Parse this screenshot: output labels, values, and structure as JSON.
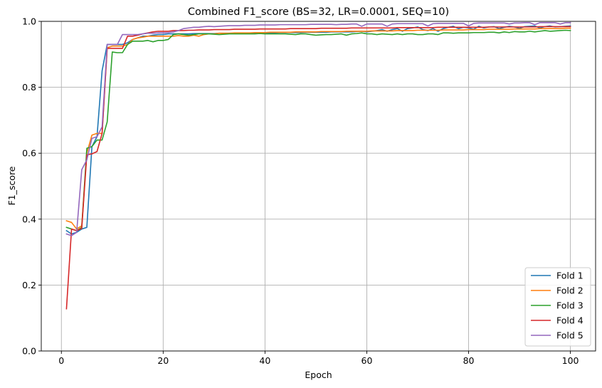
{
  "chart_data": {
    "type": "line",
    "title": "Combined F1_score (BS=32, LR=0.0001, SEQ=10)",
    "xlabel": "Epoch",
    "ylabel": "F1_score",
    "xlim": [
      -3.95,
      104.95
    ],
    "ylim": [
      0.0,
      1.0
    ],
    "xticks": [
      0,
      20,
      40,
      60,
      80,
      100
    ],
    "yticks": [
      0.0,
      0.2,
      0.4,
      0.6,
      0.8,
      1.0
    ],
    "xtick_labels": [
      "0",
      "20",
      "40",
      "60",
      "80",
      "100"
    ],
    "ytick_labels": [
      "0.0",
      "0.2",
      "0.4",
      "0.6",
      "0.8",
      "1.0"
    ],
    "grid": true,
    "legend_position": "lower-right",
    "series": [
      {
        "name": "Fold 1",
        "color": "#1f77b4",
        "values": [
          0.365,
          0.355,
          0.36,
          0.37,
          0.375,
          0.62,
          0.65,
          0.85,
          0.93,
          0.93,
          0.93,
          0.93,
          0.935,
          0.945,
          0.95,
          0.955,
          0.955,
          0.958,
          0.96,
          0.96,
          0.962,
          0.962,
          0.962,
          0.962,
          0.962,
          0.963,
          0.963,
          0.963,
          0.963,
          0.963,
          0.964,
          0.964,
          0.964,
          0.964,
          0.964,
          0.964,
          0.964,
          0.965,
          0.965,
          0.965,
          0.965,
          0.965,
          0.966,
          0.966,
          0.966,
          0.966,
          0.966,
          0.967,
          0.967,
          0.967,
          0.967,
          0.967,
          0.968,
          0.968,
          0.968,
          0.968,
          0.968,
          0.969,
          0.97,
          0.968,
          0.97,
          0.972,
          0.975,
          0.97,
          0.975,
          0.978,
          0.97,
          0.978,
          0.98,
          0.983,
          0.975,
          0.972,
          0.978,
          0.97,
          0.978,
          0.982,
          0.985,
          0.978,
          0.982,
          0.98,
          0.976,
          0.985,
          0.98,
          0.983,
          0.984,
          0.978,
          0.982,
          0.985,
          0.983,
          0.979,
          0.984,
          0.985,
          0.986,
          0.98,
          0.984,
          0.986,
          0.983,
          0.984,
          0.985,
          0.986
        ]
      },
      {
        "name": "Fold 2",
        "color": "#ff7f0e",
        "values": [
          0.395,
          0.39,
          0.37,
          0.38,
          0.6,
          0.655,
          0.66,
          0.66,
          0.92,
          0.925,
          0.925,
          0.925,
          0.93,
          0.945,
          0.95,
          0.952,
          0.955,
          0.955,
          0.955,
          0.955,
          0.955,
          0.955,
          0.957,
          0.955,
          0.955,
          0.958,
          0.955,
          0.96,
          0.962,
          0.962,
          0.964,
          0.964,
          0.964,
          0.965,
          0.965,
          0.965,
          0.965,
          0.966,
          0.966,
          0.966,
          0.967,
          0.967,
          0.967,
          0.967,
          0.967,
          0.968,
          0.968,
          0.968,
          0.968,
          0.968,
          0.969,
          0.969,
          0.969,
          0.969,
          0.969,
          0.97,
          0.97,
          0.97,
          0.97,
          0.97,
          0.971,
          0.971,
          0.971,
          0.971,
          0.971,
          0.972,
          0.972,
          0.972,
          0.972,
          0.973,
          0.973,
          0.973,
          0.973,
          0.973,
          0.974,
          0.974,
          0.974,
          0.974,
          0.974,
          0.975,
          0.975,
          0.975,
          0.975,
          0.976,
          0.976,
          0.976,
          0.976,
          0.976,
          0.977,
          0.977,
          0.977,
          0.977,
          0.977,
          0.978,
          0.978,
          0.978,
          0.978,
          0.978,
          0.979,
          0.979
        ]
      },
      {
        "name": "Fold 3",
        "color": "#2ca02c",
        "values": [
          0.375,
          0.37,
          0.365,
          0.375,
          0.615,
          0.62,
          0.64,
          0.64,
          0.695,
          0.907,
          0.905,
          0.905,
          0.93,
          0.94,
          0.94,
          0.94,
          0.942,
          0.938,
          0.942,
          0.942,
          0.945,
          0.96,
          0.962,
          0.96,
          0.958,
          0.96,
          0.962,
          0.962,
          0.962,
          0.961,
          0.96,
          0.961,
          0.962,
          0.962,
          0.962,
          0.962,
          0.962,
          0.962,
          0.963,
          0.962,
          0.962,
          0.962,
          0.962,
          0.962,
          0.961,
          0.96,
          0.962,
          0.962,
          0.96,
          0.958,
          0.959,
          0.96,
          0.96,
          0.961,
          0.962,
          0.958,
          0.962,
          0.963,
          0.965,
          0.962,
          0.962,
          0.96,
          0.962,
          0.961,
          0.96,
          0.962,
          0.96,
          0.962,
          0.962,
          0.96,
          0.96,
          0.962,
          0.962,
          0.96,
          0.965,
          0.965,
          0.964,
          0.965,
          0.965,
          0.965,
          0.966,
          0.966,
          0.966,
          0.967,
          0.967,
          0.965,
          0.968,
          0.966,
          0.969,
          0.968,
          0.968,
          0.97,
          0.968,
          0.97,
          0.972,
          0.97,
          0.971,
          0.972,
          0.973,
          0.972
        ]
      },
      {
        "name": "Fold 4",
        "color": "#d62728",
        "values": [
          0.128,
          0.37,
          0.365,
          0.372,
          0.595,
          0.598,
          0.605,
          0.66,
          0.918,
          0.918,
          0.918,
          0.918,
          0.955,
          0.955,
          0.958,
          0.962,
          0.965,
          0.968,
          0.97,
          0.97,
          0.97,
          0.972,
          0.972,
          0.972,
          0.973,
          0.973,
          0.974,
          0.974,
          0.974,
          0.975,
          0.975,
          0.975,
          0.975,
          0.976,
          0.976,
          0.976,
          0.976,
          0.976,
          0.977,
          0.977,
          0.977,
          0.977,
          0.977,
          0.977,
          0.978,
          0.978,
          0.978,
          0.978,
          0.978,
          0.978,
          0.979,
          0.979,
          0.979,
          0.979,
          0.979,
          0.979,
          0.98,
          0.98,
          0.98,
          0.98,
          0.98,
          0.98,
          0.98,
          0.98,
          0.98,
          0.981,
          0.981,
          0.981,
          0.981,
          0.981,
          0.981,
          0.981,
          0.981,
          0.982,
          0.982,
          0.982,
          0.982,
          0.982,
          0.982,
          0.982,
          0.982,
          0.982,
          0.982,
          0.983,
          0.983,
          0.983,
          0.983,
          0.983,
          0.983,
          0.983,
          0.983,
          0.983,
          0.983,
          0.984,
          0.984,
          0.984,
          0.984,
          0.984,
          0.984,
          0.984
        ]
      },
      {
        "name": "Fold 5",
        "color": "#9467bd",
        "values": [
          0.355,
          0.35,
          0.36,
          0.55,
          0.58,
          0.645,
          0.65,
          0.68,
          0.93,
          0.93,
          0.93,
          0.96,
          0.96,
          0.96,
          0.96,
          0.962,
          0.964,
          0.964,
          0.965,
          0.965,
          0.966,
          0.968,
          0.972,
          0.978,
          0.98,
          0.982,
          0.982,
          0.984,
          0.985,
          0.984,
          0.985,
          0.986,
          0.987,
          0.987,
          0.987,
          0.988,
          0.988,
          0.988,
          0.989,
          0.989,
          0.989,
          0.989,
          0.99,
          0.99,
          0.99,
          0.99,
          0.99,
          0.99,
          0.991,
          0.991,
          0.991,
          0.991,
          0.991,
          0.99,
          0.991,
          0.991,
          0.992,
          0.992,
          0.985,
          0.992,
          0.992,
          0.992,
          0.992,
          0.985,
          0.992,
          0.993,
          0.993,
          0.993,
          0.993,
          0.993,
          0.993,
          0.986,
          0.993,
          0.994,
          0.994,
          0.994,
          0.994,
          0.994,
          0.994,
          0.986,
          0.994,
          0.995,
          0.995,
          0.995,
          0.995,
          0.995,
          0.995,
          0.992,
          0.995,
          0.995,
          0.996,
          0.996,
          0.99,
          0.996,
          0.996,
          0.996,
          0.996,
          0.992,
          0.996,
          0.996
        ]
      }
    ]
  }
}
